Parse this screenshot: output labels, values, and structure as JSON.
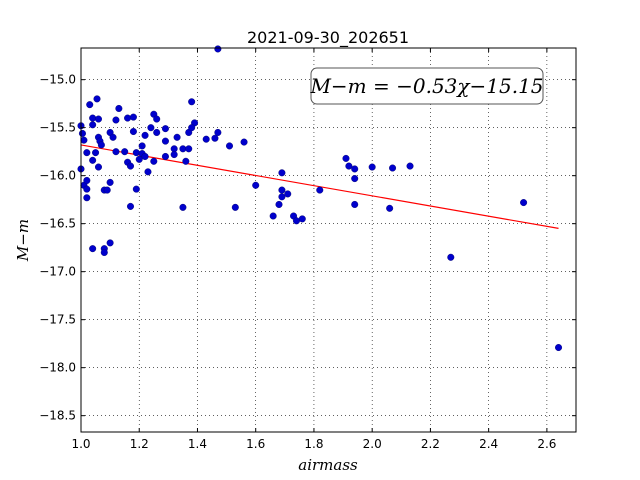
{
  "chart_data": {
    "type": "scatter",
    "title": "2021-09-30_202651",
    "xlabel": "airmass",
    "ylabel": "M−m",
    "xlim": [
      1.0,
      2.7
    ],
    "ylim": [
      -18.67,
      -14.67
    ],
    "y_inverted": true,
    "x_ticks": [
      "1.0",
      "1.2",
      "1.4",
      "1.6",
      "1.8",
      "2.0",
      "2.2",
      "2.4",
      "2.6"
    ],
    "y_ticks": [
      "−15.0",
      "−15.5",
      "−16.0",
      "−16.5",
      "−17.0",
      "−17.5",
      "−18.0",
      "−18.5"
    ],
    "x_tick_values": [
      1.0,
      1.2,
      1.4,
      1.6,
      1.8,
      2.0,
      2.2,
      2.4,
      2.6
    ],
    "y_tick_values": [
      -15.0,
      -15.5,
      -16.0,
      -16.5,
      -17.0,
      -17.5,
      -18.0,
      -18.5
    ],
    "grid": true,
    "point_color": "#0000cc",
    "fit_color": "#ff0000",
    "annotation": "M−m = −0.53χ−15.15",
    "fit": {
      "slope": -0.53,
      "intercept": -15.15,
      "x_range": [
        1.0,
        2.64
      ]
    },
    "points": [
      [
        1.0,
        -15.48
      ],
      [
        1.005,
        -15.56
      ],
      [
        1.01,
        -15.63
      ],
      [
        1.02,
        -15.76
      ],
      [
        1.0,
        -15.93
      ],
      [
        1.01,
        -16.1
      ],
      [
        1.02,
        -16.14
      ],
      [
        1.02,
        -16.05
      ],
      [
        1.02,
        -16.23
      ],
      [
        1.03,
        -15.26
      ],
      [
        1.04,
        -15.4
      ],
      [
        1.04,
        -15.47
      ],
      [
        1.04,
        -15.84
      ],
      [
        1.05,
        -15.76
      ],
      [
        1.055,
        -15.2
      ],
      [
        1.06,
        -15.41
      ],
      [
        1.06,
        -15.6
      ],
      [
        1.065,
        -15.64
      ],
      [
        1.07,
        -15.68
      ],
      [
        1.06,
        -15.91
      ],
      [
        1.08,
        -16.15
      ],
      [
        1.09,
        -16.15
      ],
      [
        1.04,
        -16.76
      ],
      [
        1.08,
        -16.76
      ],
      [
        1.08,
        -16.8
      ],
      [
        1.1,
        -15.55
      ],
      [
        1.11,
        -15.6
      ],
      [
        1.1,
        -16.07
      ],
      [
        1.1,
        -16.7
      ],
      [
        1.12,
        -15.42
      ],
      [
        1.13,
        -15.3
      ],
      [
        1.12,
        -15.75
      ],
      [
        1.15,
        -15.75
      ],
      [
        1.16,
        -15.4
      ],
      [
        1.16,
        -15.86
      ],
      [
        1.17,
        -15.9
      ],
      [
        1.17,
        -16.32
      ],
      [
        1.18,
        -15.39
      ],
      [
        1.18,
        -15.54
      ],
      [
        1.19,
        -15.76
      ],
      [
        1.19,
        -16.14
      ],
      [
        1.2,
        -15.83
      ],
      [
        1.21,
        -15.69
      ],
      [
        1.21,
        -15.77
      ],
      [
        1.22,
        -15.58
      ],
      [
        1.22,
        -15.8
      ],
      [
        1.24,
        -15.5
      ],
      [
        1.23,
        -15.96
      ],
      [
        1.25,
        -15.36
      ],
      [
        1.25,
        -15.85
      ],
      [
        1.26,
        -15.41
      ],
      [
        1.26,
        -15.55
      ],
      [
        1.29,
        -15.51
      ],
      [
        1.29,
        -15.64
      ],
      [
        1.29,
        -15.8
      ],
      [
        1.32,
        -15.72
      ],
      [
        1.32,
        -15.78
      ],
      [
        1.33,
        -15.6
      ],
      [
        1.35,
        -15.72
      ],
      [
        1.35,
        -16.33
      ],
      [
        1.36,
        -15.85
      ],
      [
        1.37,
        -15.72
      ],
      [
        1.37,
        -15.55
      ],
      [
        1.38,
        -15.23
      ],
      [
        1.39,
        -15.45
      ],
      [
        1.38,
        -15.5
      ],
      [
        1.43,
        -15.62
      ],
      [
        1.46,
        -15.61
      ],
      [
        1.47,
        -15.55
      ],
      [
        1.47,
        -14.68
      ],
      [
        1.51,
        -15.69
      ],
      [
        1.53,
        -16.33
      ],
      [
        1.56,
        -15.65
      ],
      [
        1.6,
        -16.1
      ],
      [
        1.66,
        -16.42
      ],
      [
        1.68,
        -16.3
      ],
      [
        1.69,
        -15.97
      ],
      [
        1.69,
        -16.15
      ],
      [
        1.69,
        -16.22
      ],
      [
        1.71,
        -16.19
      ],
      [
        1.73,
        -16.42
      ],
      [
        1.74,
        -16.47
      ],
      [
        1.76,
        -16.45
      ],
      [
        1.82,
        -16.15
      ],
      [
        1.91,
        -15.82
      ],
      [
        1.92,
        -15.9
      ],
      [
        1.94,
        -15.93
      ],
      [
        1.94,
        -16.03
      ],
      [
        1.94,
        -16.3
      ],
      [
        2.0,
        -15.91
      ],
      [
        2.06,
        -16.34
      ],
      [
        2.07,
        -15.92
      ],
      [
        2.13,
        -15.9
      ],
      [
        2.27,
        -16.85
      ],
      [
        2.52,
        -16.28
      ],
      [
        2.64,
        -17.79
      ]
    ]
  }
}
